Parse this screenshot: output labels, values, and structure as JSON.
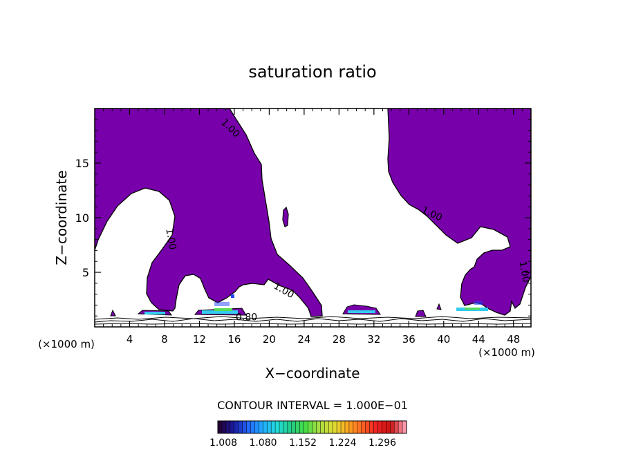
{
  "chart_data": {
    "type": "heatmap",
    "title": "saturation ratio",
    "xlabel": "X−coordinate",
    "ylabel": "Z−coordinate",
    "x_unit": "(×1000 m)",
    "z_unit": "(×1000 m)",
    "xlim": [
      0,
      50
    ],
    "ylim": [
      0,
      20
    ],
    "x_ticks": [
      4,
      8,
      12,
      16,
      20,
      24,
      28,
      32,
      36,
      40,
      44,
      48
    ],
    "y_ticks": [
      5,
      10,
      15
    ],
    "contour_labels": [
      {
        "text": "1.00",
        "x": 15.3,
        "z": 18.0
      },
      {
        "text": "1.00",
        "x": 8.4,
        "z": 8.0
      },
      {
        "text": "1.00",
        "x": 21.5,
        "z": 3.1
      },
      {
        "text": "1.00",
        "x": 38.5,
        "z": 10.1
      },
      {
        "text": "1.00",
        "x": 48.9,
        "z": 5.0
      },
      {
        "text": "0.80",
        "x": 17.4,
        "z": 0.6
      }
    ],
    "contour_interval": "CONTOUR INTERVAL = 1.000E−01",
    "colorbar": {
      "ticks": [
        "1.008",
        "1.080",
        "1.152",
        "1.224",
        "1.296"
      ],
      "colors": [
        "#24003a",
        "#1a1aa0",
        "#2266ff",
        "#22aaff",
        "#22dddd",
        "#22cc88",
        "#44dd44",
        "#aadd44",
        "#dddd33",
        "#ffaa22",
        "#ff6622",
        "#ee2222",
        "#cc1111",
        "#ff99aa"
      ]
    },
    "fill_color": "#7700aa",
    "cell_colors": {
      "cyan": "#33ccee",
      "green": "#55dd55",
      "blue": "#2244ff",
      "dark": "#10103a"
    }
  }
}
